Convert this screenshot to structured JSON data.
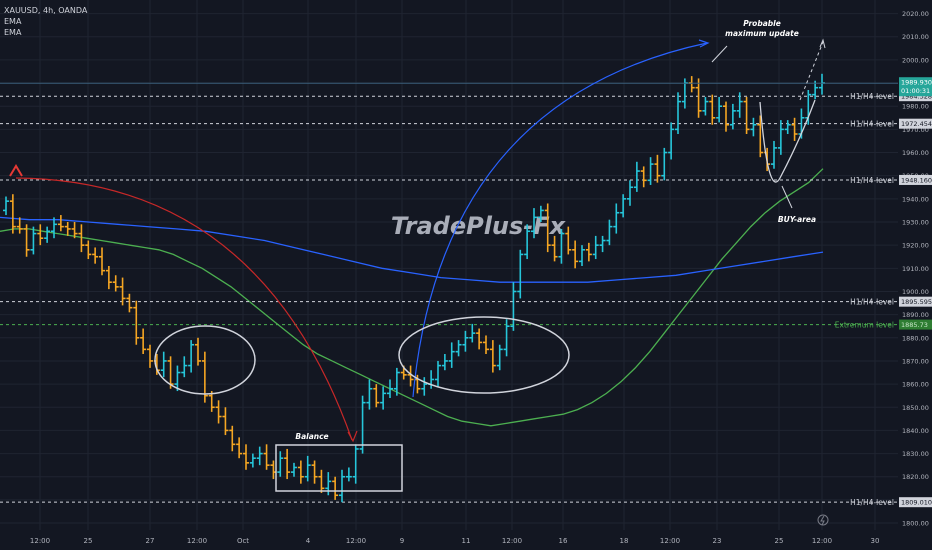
{
  "header": {
    "symbol_line": "XAUUSD, 4h, OANDA",
    "indicators": [
      "EMA",
      "EMA"
    ]
  },
  "watermark": "TradePlus-Fx",
  "price_badges": {
    "last_price": "1989.930",
    "countdown": "01:00:31"
  },
  "colors": {
    "background": "#131722",
    "bull": "#26c6da",
    "bear": "#f5a623",
    "ema_fast": "#4caf50",
    "ema_slow": "#2962ff",
    "extremum": "#4caf50",
    "text": "#d1d4dc",
    "axis_text": "#b2b5be"
  },
  "annotations": {
    "probable_max": [
      "Probable",
      "maximum update"
    ],
    "buy_area": "BUY-area",
    "balance": "Balance"
  },
  "chart_data": {
    "type": "candlestick",
    "title": "XAUUSD, 4h, OANDA",
    "x_tick_labels": [
      "12:00",
      "25",
      "27",
      "12:00",
      "Oct",
      "4",
      "12:00",
      "9",
      "11",
      "12:00",
      "16",
      "18",
      "12:00",
      "23",
      "25",
      "12:00",
      "30"
    ],
    "y_ticks": [
      1800,
      1810,
      1820,
      1830,
      1840,
      1850,
      1860,
      1870,
      1880,
      1890,
      1900,
      1910,
      1920,
      1930,
      1940,
      1950,
      1960,
      1970,
      1980,
      1990,
      2000,
      2010,
      2020
    ],
    "ylim": [
      1797,
      2025
    ],
    "levels": [
      {
        "label": "H1/H4-level",
        "price": 1984.328,
        "price_label": "1984.328"
      },
      {
        "label": "H1/H4-level",
        "price": 1972.454,
        "price_label": "1972.454"
      },
      {
        "label": "H1/H4-level",
        "price": 1948.16,
        "price_label": "1948.160"
      },
      {
        "label": "H1/H4-level",
        "price": 1895.595,
        "price_label": "1895.595"
      },
      {
        "label": "Extremum level",
        "price": 1885.7,
        "price_label": "1885.73",
        "color": "green"
      },
      {
        "label": "H1/H4-level",
        "price": 1809.01,
        "price_label": "1809.010"
      }
    ],
    "last_price": 1989.93,
    "closes": [
      1939,
      1928,
      1927,
      1918,
      1925,
      1923,
      1926,
      1929,
      1928,
      1927,
      1925,
      1920,
      1916,
      1915,
      1909,
      1904,
      1902,
      1897,
      1893,
      1880,
      1875,
      1870,
      1866,
      1870,
      1860,
      1865,
      1868,
      1877,
      1870,
      1855,
      1850,
      1846,
      1840,
      1834,
      1830,
      1826,
      1828,
      1830,
      1825,
      1822,
      1828,
      1822,
      1824,
      1820,
      1825,
      1820,
      1815,
      1818,
      1812,
      1820,
      1820,
      1832,
      1852,
      1858,
      1852,
      1856,
      1858,
      1865,
      1864,
      1862,
      1858,
      1860,
      1862,
      1868,
      1870,
      1874,
      1877,
      1880,
      1882,
      1878,
      1875,
      1868,
      1875,
      1885,
      1900,
      1916,
      1926,
      1932,
      1935,
      1920,
      1915,
      1925,
      1918,
      1913,
      1918,
      1916,
      1920,
      1922,
      1928,
      1934,
      1940,
      1945,
      1952,
      1948,
      1955,
      1950,
      1960,
      1970,
      1982,
      1990,
      1988,
      1978,
      1982,
      1975,
      1980,
      1972,
      1978,
      1982,
      1970,
      1972,
      1960,
      1955,
      1962,
      1970,
      1972,
      1968,
      1975,
      1985,
      1988,
      1990
    ],
    "ema_fast": [
      1926,
      1927,
      1927,
      1926,
      1925,
      1924,
      1923,
      1922,
      1921,
      1920,
      1919,
      1918,
      1916,
      1913,
      1910,
      1906,
      1902,
      1897,
      1892,
      1887,
      1882,
      1877,
      1873,
      1870,
      1867,
      1864,
      1861,
      1858,
      1855,
      1852,
      1849,
      1846,
      1844,
      1843,
      1842,
      1843,
      1844,
      1845,
      1846,
      1847,
      1849,
      1852,
      1856,
      1861,
      1867,
      1874,
      1882,
      1890,
      1898,
      1906,
      1914,
      1921,
      1928,
      1934,
      1939,
      1943,
      1947,
      1953
    ],
    "ema_slow": [
      1932,
      1931,
      1931,
      1930,
      1929,
      1928,
      1927,
      1926,
      1924,
      1922,
      1919,
      1916,
      1913,
      1910,
      1908,
      1906,
      1905,
      1904,
      1904,
      1904,
      1904,
      1905,
      1906,
      1907,
      1909,
      1911,
      1913,
      1915,
      1917
    ],
    "series": [
      {
        "name": "EMA",
        "values_ref": "ema_fast"
      },
      {
        "name": "EMA",
        "values_ref": "ema_slow"
      }
    ],
    "grid": true
  }
}
